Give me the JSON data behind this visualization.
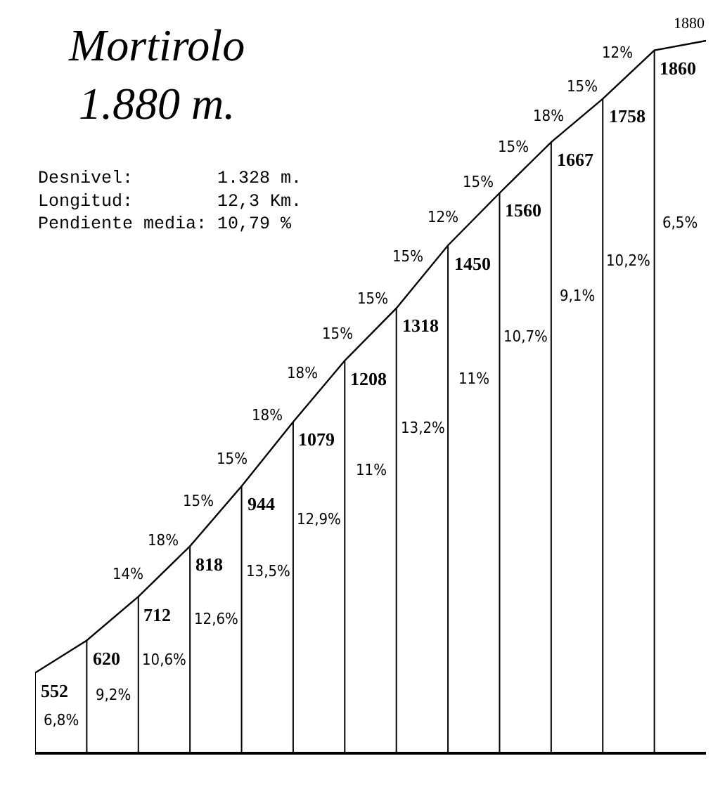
{
  "chart_data": {
    "type": "line",
    "title": "Mortirolo\n1.880 m.",
    "subtitle": "Desnivel: 1.328 m.\nLongitud: 12,3 Km.\nPendiente media: 10,79 %",
    "categories": [
      null,
      null,
      null,
      null,
      null,
      null,
      null,
      null,
      null,
      null,
      null,
      null,
      null,
      null
    ],
    "series": [
      {
        "color": "#000000",
        "values": [
          552,
          620,
          712,
          818,
          944,
          1079,
          1208,
          1318,
          1450,
          1560,
          1667,
          1758,
          1860,
          1880
        ]
      }
    ],
    "data_labels": true,
    "tick_labels": false,
    "grid": "x",
    "annotations": [
      "6,8%",
      "9,2%",
      "10,6%",
      "12,6%",
      "13,5%",
      "12,9%",
      "11%",
      "13,2%",
      "11%",
      "10,7%",
      "9,1%",
      "10,2%",
      "6,5%",
      "14%",
      "18%",
      "15%",
      "15%",
      "18%",
      "18%",
      "15%",
      "15%",
      "15%",
      "12%",
      "15%",
      "15%",
      "18%",
      "15%",
      "12%"
    ]
  }
}
